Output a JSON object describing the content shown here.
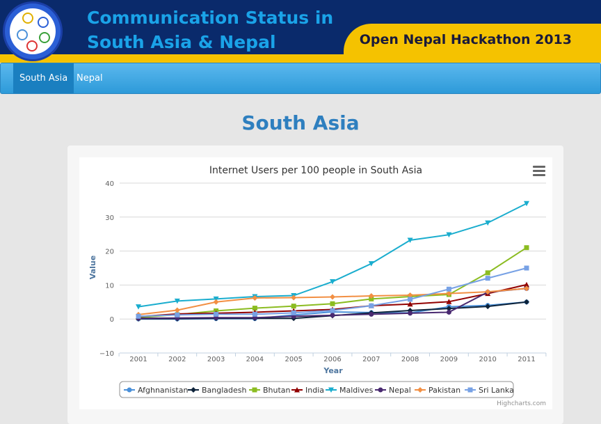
{
  "header": {
    "title_line1": "Communication Status in",
    "title_line2": "South Asia & Nepal",
    "hackathon": "Open Nepal Hackathon 2013"
  },
  "nav": {
    "items": [
      {
        "label": "South Asia",
        "active": true
      },
      {
        "label": "Nepal",
        "active": false
      }
    ]
  },
  "page": {
    "heading": "South Asia"
  },
  "credit": "Highcharts.com",
  "chart_data": {
    "type": "line",
    "title": "Internet Users per 100 people in South Asia",
    "xlabel": "Year",
    "ylabel": "Value",
    "ylim": [
      -10,
      40
    ],
    "yticks": [
      -10,
      0,
      10,
      20,
      30,
      40
    ],
    "grid": true,
    "legend_position": "bottom",
    "x": [
      "2001",
      "2002",
      "2003",
      "2004",
      "2005",
      "2006",
      "2007",
      "2008",
      "2009",
      "2010",
      "2011"
    ],
    "series": [
      {
        "name": "Afghnanistan",
        "color": "#4a90d9",
        "marker": "circle",
        "values": [
          0.0,
          0.0,
          0.1,
          0.1,
          1.2,
          2.1,
          1.9,
          1.8,
          3.6,
          4.0,
          5.0
        ]
      },
      {
        "name": "Bangladesh",
        "color": "#0d233a",
        "marker": "diamond",
        "values": [
          0.1,
          0.1,
          0.2,
          0.2,
          0.2,
          1.0,
          1.8,
          2.5,
          3.1,
          3.7,
          5.0
        ]
      },
      {
        "name": "Bhutan",
        "color": "#8bbc21",
        "marker": "square",
        "values": [
          0.4,
          1.3,
          2.4,
          3.2,
          3.8,
          4.5,
          5.9,
          6.6,
          7.2,
          13.6,
          21.0
        ]
      },
      {
        "name": "India",
        "color": "#910000",
        "marker": "triangle",
        "values": [
          0.7,
          1.5,
          1.7,
          2.0,
          2.4,
          2.8,
          3.9,
          4.4,
          5.1,
          7.5,
          10.1
        ]
      },
      {
        "name": "Maldives",
        "color": "#1aadce",
        "marker": "triangle-down",
        "values": [
          3.6,
          5.3,
          5.9,
          6.6,
          6.9,
          11.0,
          16.3,
          23.2,
          24.8,
          28.3,
          34.0
        ]
      },
      {
        "name": "Nepal",
        "color": "#492970",
        "marker": "circle",
        "values": [
          0.2,
          0.3,
          0.4,
          0.4,
          0.8,
          1.1,
          1.4,
          1.7,
          2.0,
          7.9,
          9.0
        ]
      },
      {
        "name": "Pakistan",
        "color": "#f28f43",
        "marker": "diamond",
        "values": [
          1.3,
          2.6,
          5.0,
          6.2,
          6.3,
          6.5,
          6.8,
          7.0,
          7.5,
          8.0,
          9.0
        ]
      },
      {
        "name": "Sri Lanka",
        "color": "#77a1e5",
        "marker": "square",
        "values": [
          0.8,
          1.2,
          1.4,
          1.4,
          1.8,
          2.5,
          3.9,
          5.8,
          8.8,
          12.0,
          15.0
        ]
      }
    ]
  }
}
